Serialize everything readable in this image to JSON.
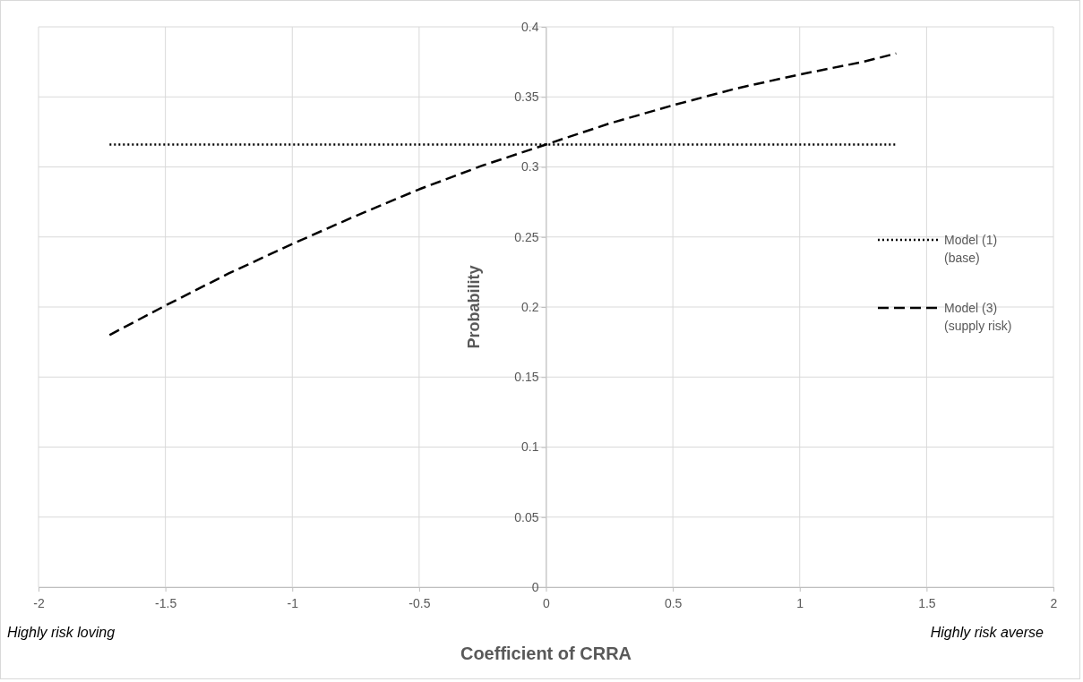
{
  "chart_data": {
    "type": "line",
    "xlabel": "Coefficient of CRRA",
    "ylabel": "Probability",
    "annotations": [
      "Highly risk loving",
      "Highly risk averse"
    ],
    "xlim": [
      -2,
      2
    ],
    "xticks": [
      -2,
      -1.5,
      -1,
      -0.5,
      0,
      0.5,
      1,
      1.5,
      2
    ],
    "ylim": [
      0,
      0.4
    ],
    "yticks": [
      0,
      0.05,
      0.1,
      0.15,
      0.2,
      0.25,
      0.3,
      0.35,
      0.4
    ],
    "grid": true,
    "legend": "right",
    "marker": "none",
    "series": [
      {
        "name": "Model (1) (base)",
        "color": "#000000",
        "line_style": "dotted",
        "x": [
          -1.72,
          1.38
        ],
        "values": [
          0.316,
          0.316
        ]
      },
      {
        "name": "Model (3) (supply risk)",
        "color": "#000000",
        "line_style": "dashed",
        "x": [
          -1.72,
          -1.5,
          -1.25,
          -1,
          -0.75,
          -0.5,
          -0.25,
          0,
          0.25,
          0.5,
          0.75,
          1,
          1.25,
          1.38
        ],
        "values": [
          0.18,
          0.201,
          0.224,
          0.245,
          0.265,
          0.284,
          0.301,
          0.316,
          0.331,
          0.344,
          0.356,
          0.366,
          0.375,
          0.381
        ]
      }
    ]
  }
}
